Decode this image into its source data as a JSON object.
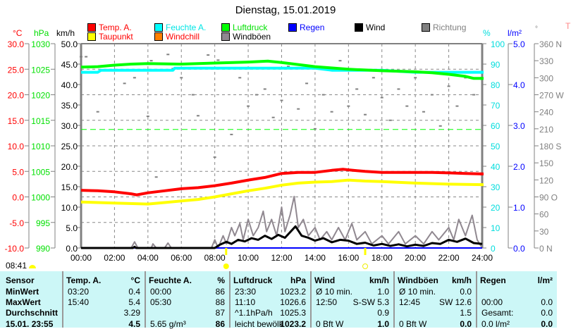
{
  "title": "Dienstag, 15.01.2019",
  "legend": [
    {
      "label": "Temp. A.",
      "color": "#ff0000",
      "text_color": "#ff0000"
    },
    {
      "label": "Feuchte A.",
      "color": "#00ffff",
      "text_color": "#00e5e5"
    },
    {
      "label": "Luftdruck",
      "color": "#00ff00",
      "text_color": "#00e000"
    },
    {
      "label": "Regen",
      "color": "#0000ff",
      "text_color": "#0000ff"
    },
    {
      "label": "Wind",
      "color": "#000000",
      "text_color": "#000000"
    },
    {
      "label": "Richtung",
      "color": "#808080",
      "text_color": "#808080"
    },
    {
      "label": "Taupunkt",
      "color": "#ffff00",
      "text_color": "#ff0000"
    },
    {
      "label": "Windchill",
      "color": "#ff8000",
      "text_color": "#ff0000"
    },
    {
      "label": "Windböen",
      "color": "#908890",
      "text_color": "#000000"
    }
  ],
  "units": {
    "temp": "°C",
    "pressure": "hPa",
    "wind": "km/h",
    "humidity": "%",
    "rain": "l/m²",
    "direction": "°",
    "extra": "T"
  },
  "sunrise": "08:41",
  "chart_data": {
    "type": "line",
    "title": "Dienstag, 15.01.2019",
    "xlim": [
      0,
      24
    ],
    "x_ticks": [
      "00:00",
      "02:00",
      "04:00",
      "06:00",
      "08:00",
      "10:00",
      "12:00",
      "14:00",
      "16:00",
      "18:00",
      "20:00",
      "22:00",
      "24:00"
    ],
    "axes": {
      "temp": {
        "range": [
          -10,
          30
        ],
        "ticks": [
          "-10.0",
          "-5.0",
          "0.0",
          "5.0",
          "10.0",
          "15.0",
          "20.0",
          "25.0",
          "30.0"
        ]
      },
      "pressure": {
        "range": [
          990,
          1030
        ],
        "ticks": [
          "990",
          "995",
          "1000",
          "1005",
          "1010",
          "1015",
          "1020",
          "1025",
          "1030"
        ]
      },
      "wind": {
        "range": [
          0,
          50
        ],
        "ticks": [
          "0.0",
          "5.0",
          "10.0",
          "15.0",
          "20.0",
          "25.0",
          "30.0",
          "35.0",
          "40.0",
          "45.0",
          "50.0"
        ]
      },
      "humidity": {
        "range": [
          0,
          100
        ],
        "ticks": [
          "0",
          "10",
          "20",
          "30",
          "40",
          "50",
          "60",
          "70",
          "80",
          "90",
          "100"
        ]
      },
      "rain": {
        "range": [
          0,
          5
        ],
        "ticks": [
          "0.0",
          "1.0",
          "2.0",
          "3.0",
          "4.0",
          "5.0"
        ]
      },
      "direction": {
        "range": [
          0,
          360
        ],
        "ticks": [
          "0   N",
          "30",
          "60",
          "90  O",
          "120",
          "150",
          "180 S",
          "210",
          "240",
          "270 W",
          "300",
          "330",
          "360 N"
        ]
      }
    },
    "series": [
      {
        "name": "Temp. A.",
        "axis": "temp",
        "color": "#ff0000",
        "points": [
          [
            0,
            1.3
          ],
          [
            1,
            1.2
          ],
          [
            2,
            1.0
          ],
          [
            3,
            0.6
          ],
          [
            3.33,
            0.4
          ],
          [
            4,
            0.8
          ],
          [
            5,
            1.2
          ],
          [
            6,
            1.6
          ],
          [
            7,
            1.8
          ],
          [
            8,
            2.2
          ],
          [
            9,
            2.7
          ],
          [
            10,
            3.3
          ],
          [
            11,
            3.8
          ],
          [
            12,
            4.6
          ],
          [
            13,
            4.8
          ],
          [
            14,
            4.8
          ],
          [
            15,
            5.2
          ],
          [
            15.67,
            5.4
          ],
          [
            16,
            5.3
          ],
          [
            17,
            5.0
          ],
          [
            18,
            4.8
          ],
          [
            19,
            4.8
          ],
          [
            20,
            4.8
          ],
          [
            21,
            4.8
          ],
          [
            22,
            4.7
          ],
          [
            23,
            4.6
          ],
          [
            24,
            4.5
          ]
        ]
      },
      {
        "name": "Taupunkt",
        "axis": "temp",
        "color": "#ffff00",
        "points": [
          [
            0,
            -1.0
          ],
          [
            2,
            -1.2
          ],
          [
            4,
            -1.4
          ],
          [
            5,
            -1.1
          ],
          [
            6,
            -0.8
          ],
          [
            7,
            -0.5
          ],
          [
            8,
            0
          ],
          [
            9,
            0.6
          ],
          [
            10,
            1.2
          ],
          [
            11,
            1.7
          ],
          [
            12,
            2.3
          ],
          [
            13,
            2.7
          ],
          [
            14,
            2.9
          ],
          [
            15,
            3.0
          ],
          [
            16,
            3.3
          ],
          [
            17,
            3.1
          ],
          [
            18,
            3.0
          ],
          [
            20,
            2.7
          ],
          [
            22,
            2.5
          ],
          [
            24,
            2.4
          ]
        ]
      },
      {
        "name": "Feuchte A.",
        "axis": "humidity",
        "color": "#00ffff",
        "points": [
          [
            0,
            86
          ],
          [
            1,
            86
          ],
          [
            1.2,
            87
          ],
          [
            5.5,
            87
          ],
          [
            5.6,
            88
          ],
          [
            10,
            88
          ],
          [
            14,
            88
          ],
          [
            15,
            87
          ],
          [
            18,
            87
          ],
          [
            20,
            86
          ],
          [
            24,
            86
          ]
        ]
      },
      {
        "name": "Luftdruck",
        "axis": "pressure",
        "color": "#00ff00",
        "points": [
          [
            0,
            1025.4
          ],
          [
            1,
            1025.5
          ],
          [
            2,
            1025.8
          ],
          [
            3,
            1026.0
          ],
          [
            4,
            1026.1
          ],
          [
            6,
            1026.0
          ],
          [
            8,
            1026.2
          ],
          [
            10,
            1026.4
          ],
          [
            11.17,
            1026.6
          ],
          [
            12,
            1026.3
          ],
          [
            14,
            1025.5
          ],
          [
            16,
            1025.0
          ],
          [
            18,
            1024.7
          ],
          [
            20,
            1024.5
          ],
          [
            21,
            1024.3
          ],
          [
            22,
            1024.0
          ],
          [
            23,
            1023.6
          ],
          [
            23.5,
            1023.2
          ],
          [
            24,
            1023.2
          ]
        ]
      },
      {
        "name": "Regen",
        "axis": "rain",
        "color": "#0000ff",
        "points": [
          [
            0,
            0
          ],
          [
            24,
            0
          ]
        ]
      },
      {
        "name": "Windböen",
        "axis": "wind",
        "color": "#908890",
        "points": [
          [
            0,
            0
          ],
          [
            3,
            0
          ],
          [
            3.2,
            1.5
          ],
          [
            3.4,
            0
          ],
          [
            4.2,
            0
          ],
          [
            4.3,
            1
          ],
          [
            4.5,
            0
          ],
          [
            5,
            0
          ],
          [
            5.2,
            1.2
          ],
          [
            5.4,
            0
          ],
          [
            7.8,
            0
          ],
          [
            8,
            2
          ],
          [
            8.2,
            0
          ],
          [
            8.5,
            3
          ],
          [
            8.7,
            1
          ],
          [
            9,
            5
          ],
          [
            9.2,
            3
          ],
          [
            9.5,
            6
          ],
          [
            9.7,
            2
          ],
          [
            10,
            7
          ],
          [
            10.3,
            3
          ],
          [
            10.6,
            5
          ],
          [
            10.9,
            9
          ],
          [
            11.1,
            4
          ],
          [
            11.4,
            7
          ],
          [
            11.7,
            3
          ],
          [
            12,
            10
          ],
          [
            12.2,
            4
          ],
          [
            12.5,
            8
          ],
          [
            12.75,
            12.6
          ],
          [
            13,
            5
          ],
          [
            13.3,
            7
          ],
          [
            13.6,
            3
          ],
          [
            14,
            5
          ],
          [
            14.3,
            2
          ],
          [
            14.7,
            4
          ],
          [
            15,
            2
          ],
          [
            15.4,
            5
          ],
          [
            15.8,
            2
          ],
          [
            16.2,
            6
          ],
          [
            16.5,
            2
          ],
          [
            17,
            4
          ],
          [
            17.4,
            1
          ],
          [
            18,
            3
          ],
          [
            18.4,
            1
          ],
          [
            19,
            4
          ],
          [
            19.4,
            1
          ],
          [
            20,
            3
          ],
          [
            20.5,
            1
          ],
          [
            21,
            4
          ],
          [
            21.4,
            2
          ],
          [
            22,
            5
          ],
          [
            22.3,
            2
          ],
          [
            22.6,
            7
          ],
          [
            23,
            3
          ],
          [
            23.4,
            8
          ],
          [
            23.7,
            2
          ],
          [
            24,
            0
          ]
        ]
      },
      {
        "name": "Wind",
        "axis": "wind",
        "color": "#000000",
        "points": [
          [
            0,
            0
          ],
          [
            3.1,
            0
          ],
          [
            3.2,
            0.3
          ],
          [
            3.3,
            0
          ],
          [
            8,
            0
          ],
          [
            8.3,
            0.8
          ],
          [
            8.7,
            1.5
          ],
          [
            9,
            1
          ],
          [
            9.4,
            2
          ],
          [
            9.8,
            1.6
          ],
          [
            10.2,
            2.4
          ],
          [
            10.6,
            2
          ],
          [
            11,
            3
          ],
          [
            11.4,
            2.2
          ],
          [
            11.8,
            3.2
          ],
          [
            12.2,
            2.5
          ],
          [
            12.83,
            5.3
          ],
          [
            13.2,
            3
          ],
          [
            13.6,
            2.5
          ],
          [
            14,
            1.8
          ],
          [
            14.5,
            2.4
          ],
          [
            15,
            1.4
          ],
          [
            15.5,
            2
          ],
          [
            16,
            1.8
          ],
          [
            16.5,
            1
          ],
          [
            17,
            1.3
          ],
          [
            17.5,
            0.6
          ],
          [
            18,
            1
          ],
          [
            18.5,
            0.5
          ],
          [
            19,
            0.9
          ],
          [
            19.5,
            0.4
          ],
          [
            20,
            0.8
          ],
          [
            20.5,
            0.5
          ],
          [
            21,
            1.2
          ],
          [
            21.5,
            1
          ],
          [
            22,
            2
          ],
          [
            22.5,
            1.5
          ],
          [
            23,
            2.3
          ],
          [
            23.5,
            1.2
          ],
          [
            24,
            1.0
          ]
        ]
      }
    ],
    "direction_points": [
      [
        0,
        337
      ],
      [
        0.3,
        337
      ],
      [
        1,
        240
      ],
      [
        2.6,
        290
      ],
      [
        3.2,
        300
      ],
      [
        4,
        232
      ],
      [
        4.2,
        330
      ],
      [
        4.5,
        125
      ],
      [
        5.2,
        341
      ],
      [
        5.5,
        316
      ],
      [
        6,
        300
      ],
      [
        6.7,
        270
      ],
      [
        7,
        233
      ],
      [
        7.6,
        340
      ],
      [
        8,
        160
      ],
      [
        8.2,
        331
      ],
      [
        9,
        200
      ],
      [
        9.5,
        300
      ],
      [
        10,
        250
      ],
      [
        10.5,
        270
      ],
      [
        11,
        280
      ],
      [
        11.5,
        230
      ],
      [
        12,
        260
      ],
      [
        12.4,
        320
      ],
      [
        13,
        245
      ],
      [
        13.5,
        290
      ],
      [
        14,
        210
      ],
      [
        14.5,
        270
      ],
      [
        15,
        240
      ],
      [
        15.5,
        330
      ],
      [
        16,
        250
      ],
      [
        16.5,
        280
      ],
      [
        17,
        235
      ],
      [
        17.5,
        300
      ],
      [
        18,
        265
      ],
      [
        18.5,
        225
      ],
      [
        19,
        280
      ],
      [
        19.5,
        250
      ],
      [
        20,
        300
      ],
      [
        20.5,
        240
      ],
      [
        21,
        270
      ],
      [
        21.5,
        215
      ],
      [
        22,
        285
      ],
      [
        22.5,
        250
      ],
      [
        23,
        300
      ],
      [
        23.5,
        270
      ]
    ],
    "reference_line": {
      "axis": "wind",
      "value": 29,
      "color": "#00ff00"
    }
  },
  "table": {
    "headers": [
      "Sensor",
      "Temp. A.",
      "°C",
      "Feuchte A.",
      "%",
      "Luftdruck",
      "hPa",
      "Wind",
      "km/h",
      "Windböen",
      "km/h",
      "Regen",
      "l/m²"
    ],
    "rows": [
      [
        "MinWert",
        "03:20",
        "0.4",
        "00:00",
        "86",
        "23:30",
        "1023.2",
        "Ø 10 min.",
        "1.0",
        "Ø 10 min.",
        "0.0",
        "",
        ""
      ],
      [
        "MaxWert",
        "15:40",
        "5.4",
        "05:30",
        "88",
        "11:10",
        "1026.6",
        "12:50",
        "S-SW 5.3",
        "12:45",
        "SW 12.6",
        "00:00",
        "0.0"
      ],
      [
        "Durchschnitt",
        "",
        "3.29",
        "",
        "87",
        "^1.1hPa/h",
        "1025.3",
        "",
        "0.9",
        "",
        "1.5",
        "Gesamt:",
        "0.0"
      ],
      [
        "15.01. 23:55",
        "",
        "4.5",
        "5.65 g/m³",
        "86",
        "leicht bewölkt",
        "1023.2",
        "0 Bft W",
        "1.0",
        "0 Bft W",
        "0.0",
        "0.0 l/m²",
        "0.0"
      ]
    ]
  }
}
